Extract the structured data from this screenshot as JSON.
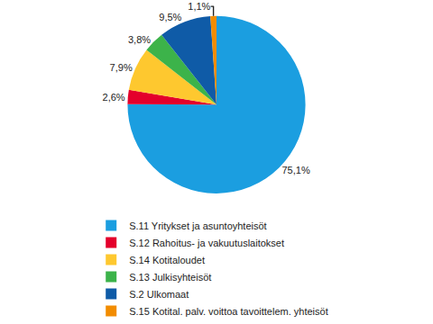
{
  "chart_data": {
    "type": "pie",
    "categories": [
      "S.11 Yritykset ja asuntoyhteisöt",
      "S.12 Rahoitus- ja vakuutuslaitokset",
      "S.14 Kotitaloudet",
      "S.13 Julkisyhteisöt",
      "S.2 Ulkomaat",
      "S.15 Kotital. palv. voittoa tavoittelem. yhteisöt"
    ],
    "values": [
      75.1,
      2.6,
      7.9,
      3.8,
      9.5,
      1.1
    ],
    "value_labels": [
      "75,1%",
      "2,6%",
      "7,9%",
      "3,8%",
      "9,5%",
      "1,1%"
    ],
    "colors": [
      "#1b9ee0",
      "#e4002b",
      "#fec82f",
      "#3cb34a",
      "#0f5ba7",
      "#f28c00"
    ],
    "data_labels": true,
    "legend": "bottom"
  }
}
